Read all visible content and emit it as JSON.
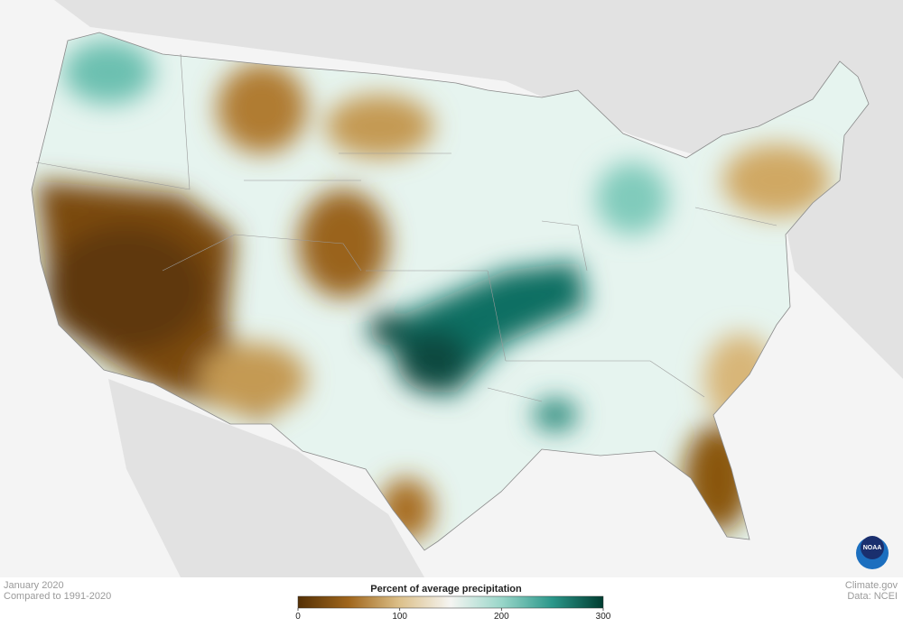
{
  "map": {
    "date": "January 2020",
    "baseline": "Compared to 1991-2020"
  },
  "credits": {
    "site": "Climate.gov",
    "source": "Data: NCEI",
    "logo": "NOAA"
  },
  "legend": {
    "title": "Percent of average precipitation",
    "range": [
      0,
      300
    ],
    "ticks": [
      0,
      100,
      200,
      300
    ],
    "colors": [
      "#543005",
      "#a0661c",
      "#dcc08a",
      "#f5f5f2",
      "#99d6c9",
      "#2b978a",
      "#003c30"
    ]
  }
}
